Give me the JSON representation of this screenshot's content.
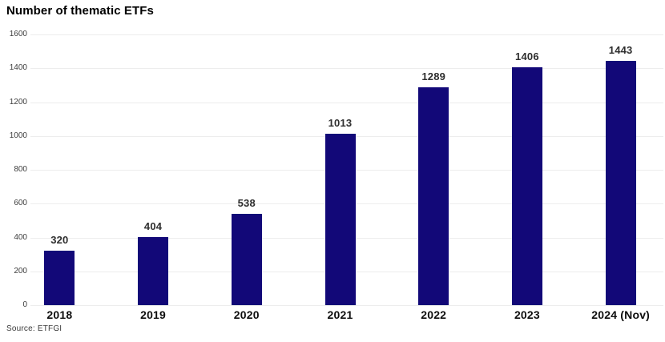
{
  "chart_data": {
    "type": "bar",
    "title": "Number of thematic ETFs",
    "categories": [
      "2018",
      "2019",
      "2020",
      "2021",
      "2022",
      "2023",
      "2024 (Nov)"
    ],
    "values": [
      320,
      404,
      538,
      1013,
      1289,
      1406,
      1443
    ],
    "xlabel": "",
    "ylabel": "",
    "ylim": [
      0,
      1600
    ],
    "yticks": [
      0,
      200,
      400,
      600,
      800,
      1000,
      1200,
      1400,
      1600
    ],
    "grid": true,
    "legend": "none",
    "bar_color": "#120878",
    "gridline_color": "#ededed",
    "source": "Source: ETFGI"
  }
}
